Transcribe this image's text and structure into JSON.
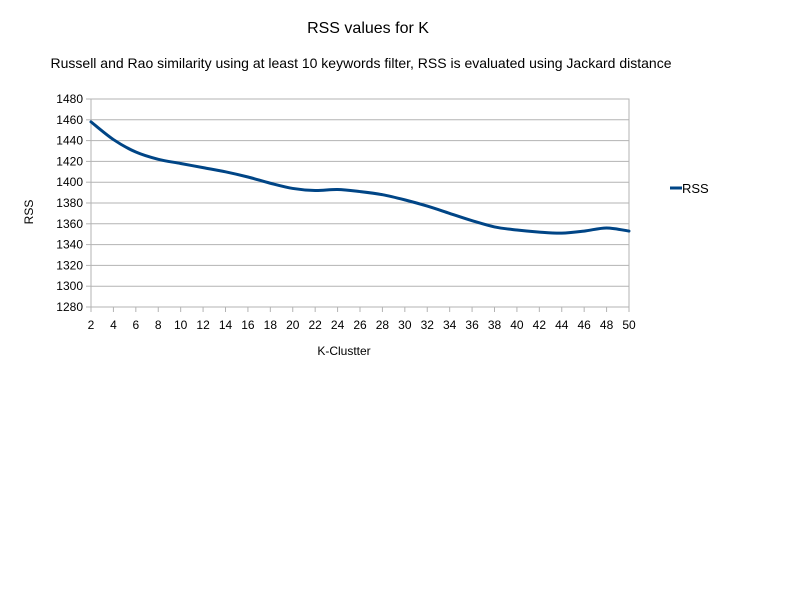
{
  "chart_data": {
    "type": "line",
    "title": "RSS values for K",
    "subtitle": "Russell and Rao similarity using at least 10 keywords filter, RSS is evaluated using Jackard distance",
    "xlabel": "K-Clustter",
    "ylabel": "RSS",
    "xlim": [
      2,
      50
    ],
    "ylim": [
      1280,
      1480
    ],
    "x_ticks": [
      2,
      4,
      6,
      8,
      10,
      12,
      14,
      16,
      18,
      20,
      22,
      24,
      26,
      28,
      30,
      32,
      34,
      36,
      38,
      40,
      42,
      44,
      46,
      48,
      50
    ],
    "y_ticks": [
      1280,
      1300,
      1320,
      1340,
      1360,
      1380,
      1400,
      1420,
      1440,
      1460,
      1480
    ],
    "grid": true,
    "legend_position": "right",
    "series": [
      {
        "name": "RSS",
        "color": "#004586",
        "x": [
          2,
          4,
          6,
          8,
          10,
          12,
          14,
          16,
          18,
          20,
          22,
          24,
          26,
          28,
          30,
          32,
          34,
          36,
          38,
          40,
          42,
          44,
          46,
          48,
          50
        ],
        "values": [
          1458,
          1441,
          1429,
          1422,
          1418,
          1414,
          1410,
          1405,
          1399,
          1394,
          1392,
          1393,
          1391,
          1388,
          1383,
          1377,
          1370,
          1363,
          1357,
          1354,
          1352,
          1351,
          1353,
          1356,
          1353
        ]
      }
    ]
  }
}
